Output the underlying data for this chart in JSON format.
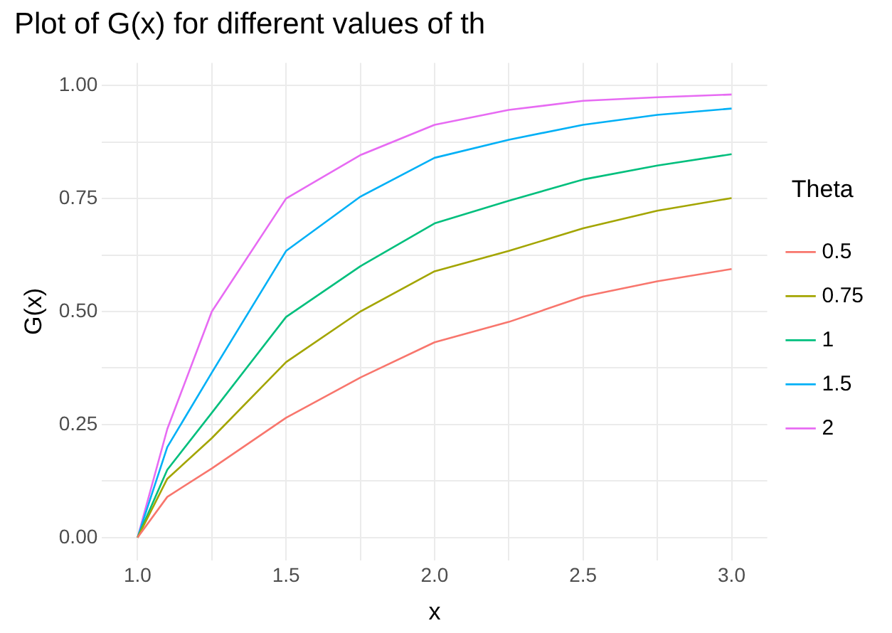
{
  "chart_data": {
    "type": "line",
    "title": "Plot of G(x) for different values of th",
    "xlabel": "x",
    "ylabel": "G(x)",
    "legend_title": "Theta",
    "legend": "right",
    "grid": true,
    "marker": "none",
    "line_style": "solid",
    "x": [
      1,
      1.1,
      1.25,
      1.5,
      1.75,
      2,
      2.25,
      2.5,
      2.75,
      3
    ],
    "xlim": [
      0.88,
      3.12
    ],
    "ylim": [
      -0.05,
      1.05
    ],
    "xticks": [
      {
        "value": 1,
        "label": "1.0"
      },
      {
        "value": 1.25,
        "label": null
      },
      {
        "value": 1.5,
        "label": "1.5"
      },
      {
        "value": 1.75,
        "label": null
      },
      {
        "value": 2,
        "label": "2.0"
      },
      {
        "value": 2.25,
        "label": null
      },
      {
        "value": 2.5,
        "label": "2.5"
      },
      {
        "value": 2.75,
        "label": null
      },
      {
        "value": 3,
        "label": "3.0"
      }
    ],
    "yticks": [
      {
        "value": 0,
        "label": "0.00"
      },
      {
        "value": 0.125,
        "label": null
      },
      {
        "value": 0.25,
        "label": "0.25"
      },
      {
        "value": 0.375,
        "label": null
      },
      {
        "value": 0.5,
        "label": "0.50"
      },
      {
        "value": 0.625,
        "label": null
      },
      {
        "value": 0.75,
        "label": "0.75"
      },
      {
        "value": 0.875,
        "label": null
      },
      {
        "value": 1,
        "label": "1.00"
      }
    ],
    "series": [
      {
        "name": "0.5",
        "color": "#f8766d",
        "values": [
          0,
          0.09,
          0.153,
          0.265,
          0.354,
          0.432,
          0.477,
          0.533,
          0.567,
          0.594
        ]
      },
      {
        "name": "0.75",
        "color": "#a3a500",
        "values": [
          0,
          0.13,
          0.22,
          0.388,
          0.5,
          0.589,
          0.634,
          0.684,
          0.723,
          0.751
        ]
      },
      {
        "name": "1",
        "color": "#00bf7d",
        "values": [
          0,
          0.15,
          0.276,
          0.488,
          0.6,
          0.695,
          0.745,
          0.792,
          0.823,
          0.848
        ]
      },
      {
        "name": "1.5",
        "color": "#00b0f6",
        "values": [
          0,
          0.2,
          0.365,
          0.634,
          0.754,
          0.84,
          0.88,
          0.913,
          0.935,
          0.949
        ]
      },
      {
        "name": "2",
        "color": "#e76bf3",
        "values": [
          0,
          0.24,
          0.5,
          0.75,
          0.846,
          0.913,
          0.946,
          0.966,
          0.974,
          0.98
        ]
      }
    ]
  }
}
